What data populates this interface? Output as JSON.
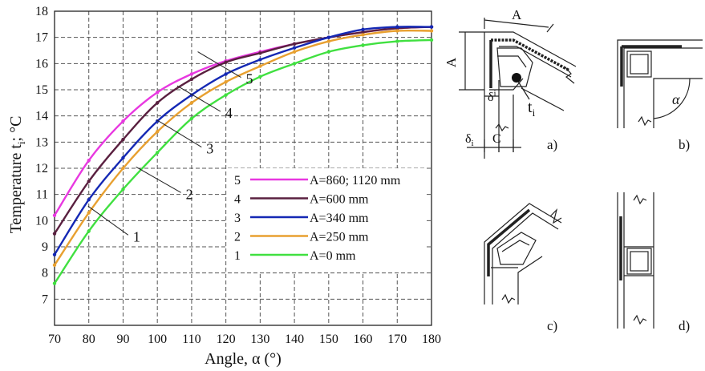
{
  "chart_data": {
    "type": "line",
    "title": "",
    "xlabel": "Angle, α (°)",
    "ylabel": "Temperature  t",
    "ylabel_subscript": "i",
    "ylabel_unit": "; °C",
    "xlim": [
      70,
      180
    ],
    "ylim": [
      6,
      18
    ],
    "xticks": [
      70,
      80,
      90,
      100,
      110,
      120,
      130,
      140,
      150,
      160,
      170,
      180
    ],
    "yticks": [
      7,
      8,
      9,
      10,
      11,
      12,
      13,
      14,
      15,
      16,
      17,
      18
    ],
    "grid": true,
    "legend_position": "lower-right",
    "series": [
      {
        "id": "5",
        "name": "A=860; 1120 mm",
        "color": "#e838e0",
        "x": [
          70,
          80,
          90,
          100,
          110,
          120,
          130,
          140,
          150,
          160,
          170,
          180
        ],
        "y": [
          10.2,
          12.3,
          13.8,
          14.9,
          15.6,
          16.1,
          16.45,
          16.75,
          17.0,
          17.2,
          17.35,
          17.4
        ]
      },
      {
        "id": "4",
        "name": "A=600 mm",
        "color": "#5a2040",
        "x": [
          70,
          80,
          90,
          100,
          110,
          120,
          130,
          140,
          150,
          160,
          170,
          180
        ],
        "y": [
          9.5,
          11.5,
          13.1,
          14.5,
          15.4,
          16.05,
          16.4,
          16.75,
          17.0,
          17.2,
          17.35,
          17.4
        ]
      },
      {
        "id": "3",
        "name": "A=340 mm",
        "color": "#1428b4",
        "x": [
          70,
          80,
          90,
          100,
          110,
          120,
          130,
          140,
          150,
          160,
          170,
          180
        ],
        "y": [
          8.7,
          10.8,
          12.4,
          13.8,
          14.8,
          15.6,
          16.15,
          16.6,
          17.0,
          17.3,
          17.4,
          17.4
        ]
      },
      {
        "id": "2",
        "name": "A=250 mm",
        "color": "#e8a030",
        "x": [
          70,
          80,
          90,
          100,
          110,
          120,
          130,
          140,
          150,
          160,
          170,
          180
        ],
        "y": [
          8.3,
          10.3,
          12.0,
          13.4,
          14.5,
          15.3,
          15.9,
          16.45,
          16.85,
          17.1,
          17.25,
          17.25
        ]
      },
      {
        "id": "1",
        "name": "A=0 mm",
        "color": "#40e040",
        "x": [
          70,
          80,
          90,
          100,
          110,
          120,
          130,
          140,
          150,
          160,
          170,
          180
        ],
        "y": [
          7.6,
          9.6,
          11.2,
          12.6,
          13.9,
          14.8,
          15.5,
          16.0,
          16.45,
          16.7,
          16.85,
          16.9
        ]
      }
    ],
    "annotations": [
      {
        "label": "1",
        "x": 84,
        "y": 10.0
      },
      {
        "label": "2",
        "x": 98,
        "y": 11.5
      },
      {
        "label": "3",
        "x": 104,
        "y": 13.3
      },
      {
        "label": "4",
        "x": 110,
        "y": 14.6
      },
      {
        "label": "5",
        "x": 116,
        "y": 15.9
      }
    ]
  },
  "diagrams": {
    "a": {
      "letter": "a)",
      "dim_A": "A",
      "dim_A_vertical": "A",
      "delta_inner": "δ",
      "delta_inner_sup": "i",
      "delta_i": "δ",
      "delta_i_sub": "i",
      "dim_C": "C",
      "point_t": "t",
      "point_t_sub": "i"
    },
    "b": {
      "letter": "b)",
      "angle": "α"
    },
    "c": {
      "letter": "c)"
    },
    "d": {
      "letter": "d)"
    }
  },
  "colors": {
    "grid": "#555555",
    "axis": "#222222",
    "wall": "#222222"
  }
}
